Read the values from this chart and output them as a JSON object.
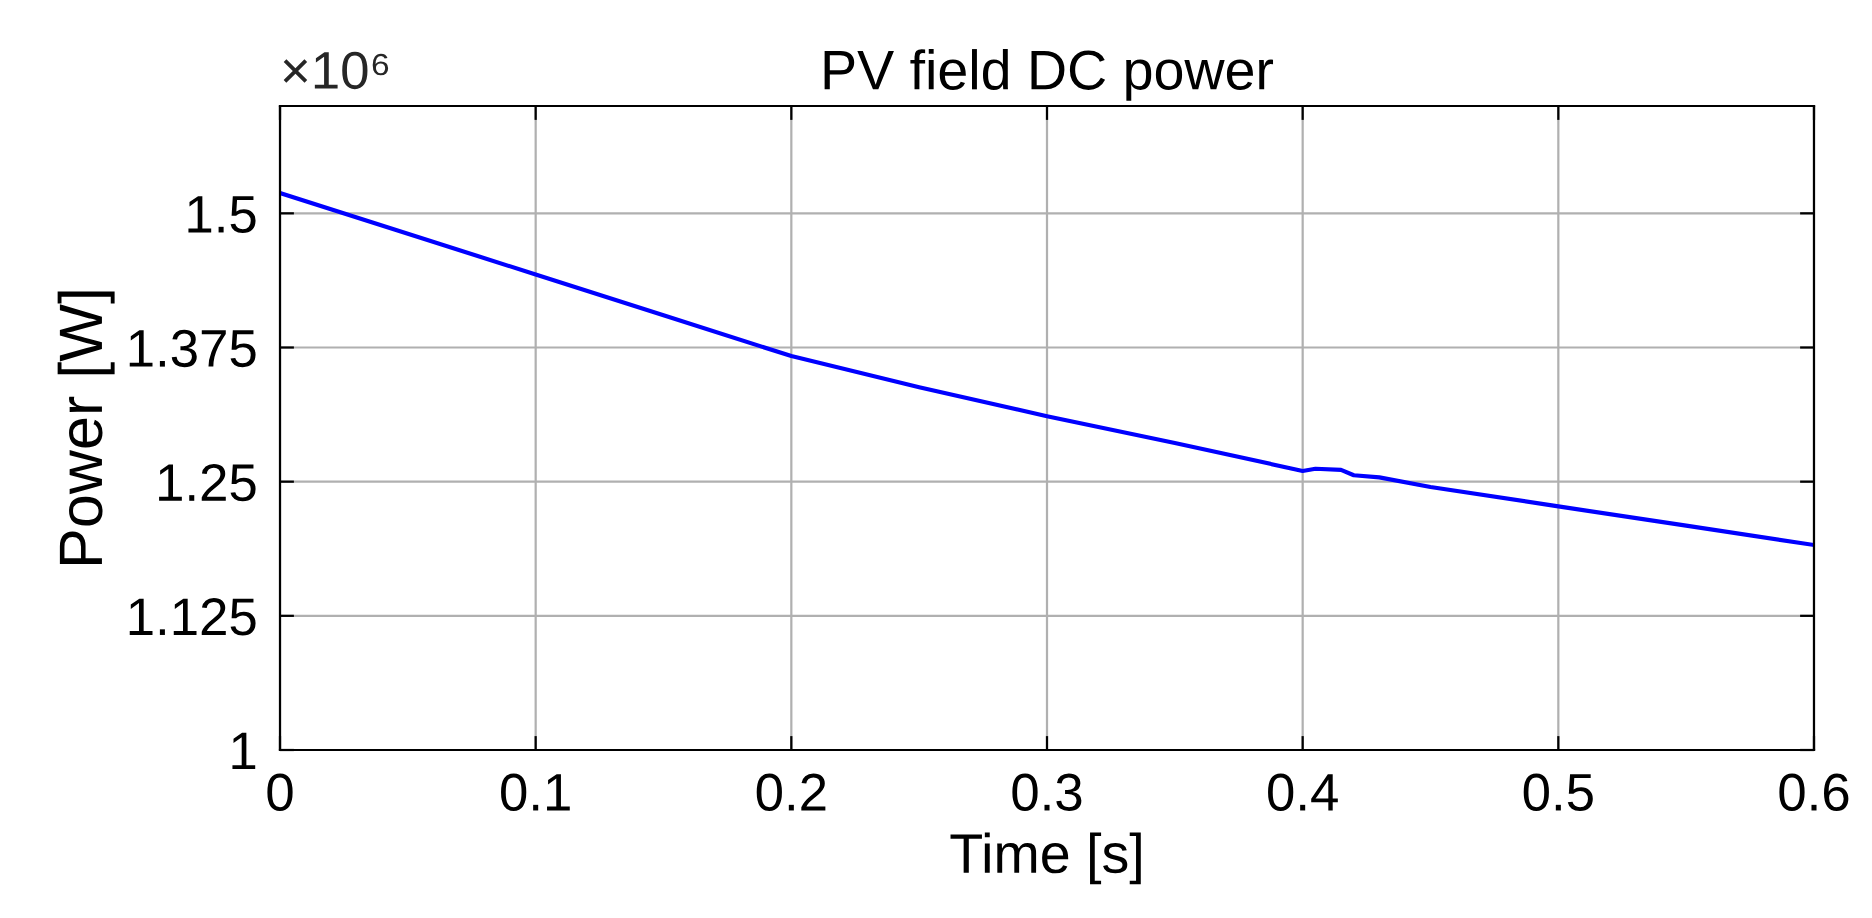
{
  "chart_data": {
    "type": "line",
    "title": "PV field DC power",
    "xlabel": "Time [s]",
    "ylabel": "Power [W]",
    "annotations": [
      "×10⁶"
    ],
    "x": [
      0,
      0.05,
      0.1,
      0.15,
      0.2,
      0.25,
      0.3,
      0.35,
      0.4,
      0.405,
      0.415,
      0.42,
      0.43,
      0.45,
      0.5,
      0.55,
      0.6
    ],
    "series": [
      {
        "color": "#0000ff",
        "values": [
          1.519,
          1.481,
          1.443,
          1.405,
          1.367,
          1.338,
          1.311,
          1.286,
          1.26,
          1.262,
          1.261,
          1.256,
          1.254,
          1.245,
          1.227,
          1.209,
          1.191
        ]
      }
    ],
    "xlim": [
      0,
      0.6
    ],
    "xticks": [
      0,
      0.1,
      0.2,
      0.3,
      0.4,
      0.5,
      0.6
    ],
    "ylim": [
      1,
      1.6
    ],
    "yticks": [
      1,
      1.125,
      1.25,
      1.375,
      1.5
    ],
    "grid": true,
    "marker": "none",
    "line_style": "solid"
  }
}
